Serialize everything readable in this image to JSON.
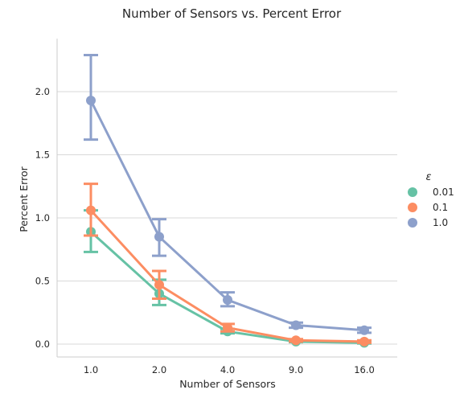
{
  "chart_data": {
    "type": "line",
    "title": "Number of Sensors vs. Percent Error",
    "xlabel": "Number of Sensors",
    "ylabel": "Percent Error",
    "categories": [
      "1.0",
      "2.0",
      "4.0",
      "9.0",
      "16.0"
    ],
    "ylim": [
      -0.1,
      2.4
    ],
    "yticks": [
      "0.0",
      "0.5",
      "1.0",
      "1.5",
      "2.0"
    ],
    "ytick_values": [
      0.0,
      0.5,
      1.0,
      1.5,
      2.0
    ],
    "grid": "horizontal",
    "legend": {
      "title": "ε",
      "placement": "right"
    },
    "series": [
      {
        "name": "0.01",
        "color": "#66c2a5",
        "values": [
          0.89,
          0.4,
          0.1,
          0.02,
          0.01
        ],
        "err_low": [
          0.73,
          0.31,
          0.085,
          0.015,
          0.005
        ],
        "err_high": [
          1.06,
          0.51,
          0.12,
          0.03,
          0.015
        ]
      },
      {
        "name": "0.1",
        "color": "#fc8d62",
        "values": [
          1.06,
          0.47,
          0.13,
          0.03,
          0.02
        ],
        "err_low": [
          0.86,
          0.36,
          0.1,
          0.02,
          0.01
        ],
        "err_high": [
          1.27,
          0.58,
          0.16,
          0.04,
          0.03
        ]
      },
      {
        "name": "1.0",
        "color": "#8da0cb",
        "values": [
          1.93,
          0.85,
          0.35,
          0.15,
          0.11
        ],
        "err_low": [
          1.62,
          0.7,
          0.3,
          0.13,
          0.09
        ],
        "err_high": [
          2.29,
          0.99,
          0.41,
          0.17,
          0.13
        ]
      }
    ]
  }
}
